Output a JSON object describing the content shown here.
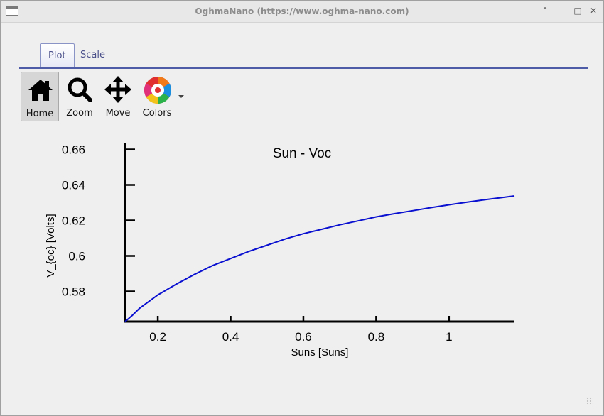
{
  "window": {
    "title": "OghmaNano (https://www.oghma-nano.com)"
  },
  "tabs": [
    {
      "label": "Plot",
      "active": true
    },
    {
      "label": "Scale",
      "active": false
    }
  ],
  "toolbar": {
    "items": [
      {
        "label": "Home",
        "icon": "home-icon",
        "active": true
      },
      {
        "label": "Zoom",
        "icon": "zoom-icon",
        "active": false
      },
      {
        "label": "Move",
        "icon": "move-icon",
        "active": false
      },
      {
        "label": "Colors",
        "icon": "colors-icon",
        "active": false
      }
    ]
  },
  "chart_data": {
    "type": "line",
    "title": "Sun - Voc",
    "xlabel": "Suns [Suns]",
    "ylabel": "V_{oc} [Volts]",
    "xlim": [
      0.11,
      1.18
    ],
    "ylim": [
      0.563,
      0.663
    ],
    "xticks": [
      0.2,
      0.4,
      0.6,
      0.8,
      1
    ],
    "xtick_labels": [
      "0.2",
      "0.4",
      "0.6",
      "0.8",
      "1"
    ],
    "yticks": [
      0.58,
      0.6,
      0.62,
      0.64,
      0.66
    ],
    "ytick_labels": [
      "0.58",
      "0.6",
      "0.62",
      "0.64",
      "0.66"
    ],
    "series_color": "#0a10d0",
    "series": [
      {
        "x": [
          0.11,
          0.13,
          0.15,
          0.2,
          0.25,
          0.3,
          0.35,
          0.4,
          0.45,
          0.5,
          0.55,
          0.6,
          0.65,
          0.7,
          0.75,
          0.8,
          0.85,
          0.9,
          0.95,
          1.0,
          1.05,
          1.1,
          1.15,
          1.18
        ],
        "y": [
          0.563,
          0.5665,
          0.5705,
          0.578,
          0.584,
          0.5895,
          0.5945,
          0.5985,
          0.6025,
          0.606,
          0.6095,
          0.6125,
          0.615,
          0.6175,
          0.6197,
          0.622,
          0.6238,
          0.6255,
          0.6272,
          0.6288,
          0.6303,
          0.6317,
          0.633,
          0.6338
        ]
      }
    ]
  }
}
